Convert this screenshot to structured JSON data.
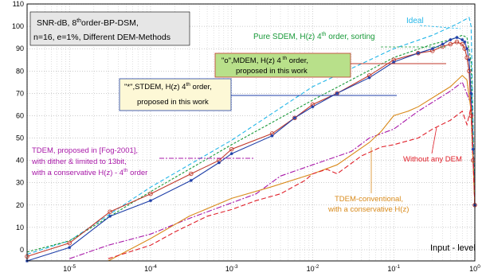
{
  "chart_data": {
    "type": "line",
    "x_scale": "log",
    "xlabel": "Input - level",
    "ylabel": "",
    "xlim": [
      3e-06,
      1
    ],
    "ylim": [
      -5,
      110
    ],
    "grid": true,
    "y_ticks": [
      0,
      10,
      20,
      30,
      40,
      50,
      60,
      70,
      80,
      90,
      100,
      110
    ],
    "y_tick_labels": [
      "0",
      "10",
      "20",
      "30",
      "40",
      "50",
      "60",
      "70",
      "80",
      "90",
      "100",
      "110"
    ],
    "x_ticks": [
      1e-05,
      0.0001,
      0.001,
      0.01,
      0.1,
      1
    ],
    "x_tick_bases": [
      "10",
      "10",
      "10",
      "10",
      "10",
      "10"
    ],
    "x_tick_exps": [
      "-5",
      "-4",
      "-3",
      "-2",
      "-1",
      "0"
    ],
    "info_box": {
      "line1_pre": "SNR-dB, 8",
      "line1_sup": "th",
      "line1_post": "order-BP-DSM,",
      "line2": "n=16, e=1%, Different DEM-Methods"
    },
    "annotations": {
      "ideal": "Ideal",
      "pure_sdem_pre": "Pure SDEM, H(z)  4",
      "pure_sdem_sup": "th",
      "pure_sdem_post": " order, sorting",
      "mdem_line1_pre": "\"o\",MDEM, H(z)  4",
      "mdem_line1_sup": " th",
      "mdem_line1_post": "  order,",
      "mdem_line2": "proposed in this work",
      "stdem_line1_pre": "\"*\",STDEM, H(z)  4",
      "stdem_line1_sup": "th",
      "stdem_line1_post": "  order,",
      "stdem_line2": "proposed in this work",
      "tdem_line1": "TDEM,  proposed in [Fog-2001],",
      "tdem_line2": "with dither & limited to 13bit,",
      "tdem_line3_pre": "with a conservative H(z) -  4",
      "tdem_line3_sup": "th",
      "tdem_line3_post": " order",
      "tdem_conv_line1": "TDEM-conventional,",
      "tdem_conv_line2": "with a conservative H(z)",
      "no_dem": "Without any DEM"
    },
    "series": [
      {
        "key": "ideal",
        "color": "#22b6e8",
        "dash": "5,3",
        "marker": "none",
        "x": [
          3e-06,
          1e-05,
          0.0001,
          0.001,
          0.01,
          0.1,
          0.3,
          0.6,
          0.85,
          0.9,
          1.0
        ],
        "y": [
          -2,
          4,
          28,
          49,
          73,
          90,
          96,
          101,
          104,
          100,
          20
        ]
      },
      {
        "key": "pure_sdem",
        "color": "#1a9a3a",
        "dash": "3,2",
        "marker": "none",
        "x": [
          3e-06,
          1e-05,
          0.0001,
          0.001,
          0.01,
          0.1,
          0.3,
          0.5,
          0.7,
          0.8,
          0.9,
          1.0
        ],
        "y": [
          -1,
          4,
          26,
          47,
          67,
          86,
          92,
          94,
          96,
          95,
          84,
          20
        ]
      },
      {
        "key": "mdem",
        "color": "#c0392b",
        "dash": "",
        "marker": "circle",
        "x": [
          3e-06,
          1e-05,
          3.16e-05,
          0.0001,
          0.000316,
          0.0007,
          0.001,
          0.00316,
          0.006,
          0.01,
          0.02,
          0.05,
          0.1,
          0.2,
          0.3,
          0.4,
          0.5,
          0.6,
          0.7,
          0.75,
          0.8,
          0.85,
          0.9,
          0.95,
          1.0
        ],
        "y": [
          -3,
          3,
          17,
          25,
          34,
          40,
          45,
          52,
          59,
          65,
          70,
          78,
          85,
          88,
          89,
          91,
          92,
          93,
          92,
          90,
          86,
          80,
          60,
          40,
          20
        ]
      },
      {
        "key": "stdem",
        "color": "#1f3fa8",
        "dash": "",
        "marker": "star",
        "x": [
          3e-06,
          1e-05,
          3.16e-05,
          0.0001,
          0.000316,
          0.0007,
          0.001,
          0.00316,
          0.006,
          0.01,
          0.02,
          0.05,
          0.1,
          0.2,
          0.3,
          0.4,
          0.5,
          0.6,
          0.7,
          0.75,
          0.8,
          0.85,
          0.9,
          0.95,
          1.0
        ],
        "y": [
          -5,
          1,
          15,
          22,
          31,
          39,
          43,
          51,
          59,
          64,
          70,
          77,
          84,
          88,
          90,
          92,
          94,
          95,
          94,
          93,
          90,
          85,
          70,
          45,
          20
        ]
      },
      {
        "key": "tdem",
        "color": "#a818a8",
        "dash": "7,2,2,2",
        "marker": "none",
        "x": [
          1e-05,
          3e-05,
          0.0001,
          0.0003,
          0.001,
          0.002,
          0.004,
          0.01,
          0.03,
          0.05,
          0.1,
          0.2,
          0.3,
          0.5,
          0.7,
          0.9,
          1.0
        ],
        "y": [
          -4,
          2,
          7,
          14,
          21,
          25,
          33,
          38,
          44,
          50,
          54,
          62,
          66,
          71,
          75,
          65,
          20
        ]
      },
      {
        "key": "tdem_conv",
        "color": "#d98b1c",
        "dash": "",
        "marker": "none",
        "x": [
          3e-05,
          0.0001,
          0.0003,
          0.001,
          0.003,
          0.01,
          0.02,
          0.05,
          0.07,
          0.1,
          0.15,
          0.2,
          0.3,
          0.5,
          0.7,
          0.8,
          0.9,
          1.0
        ],
        "y": [
          -5,
          5,
          15,
          23,
          28,
          34,
          38,
          48,
          53,
          60,
          62,
          64,
          68,
          73,
          78,
          76,
          62,
          20
        ]
      },
      {
        "key": "no_dem",
        "color": "#e0202a",
        "dash": "6,3",
        "marker": "none",
        "x": [
          3e-05,
          0.0001,
          0.0002,
          0.0005,
          0.001,
          0.002,
          0.004,
          0.008,
          0.01,
          0.015,
          0.02,
          0.04,
          0.07,
          0.1,
          0.2,
          0.3,
          0.5,
          0.7,
          0.8,
          0.9,
          1.0
        ],
        "y": [
          -4,
          2,
          8,
          15,
          18,
          22,
          25,
          31,
          34,
          36,
          34,
          42,
          46,
          47,
          50,
          54,
          58,
          62,
          56,
          64,
          20
        ]
      }
    ]
  }
}
